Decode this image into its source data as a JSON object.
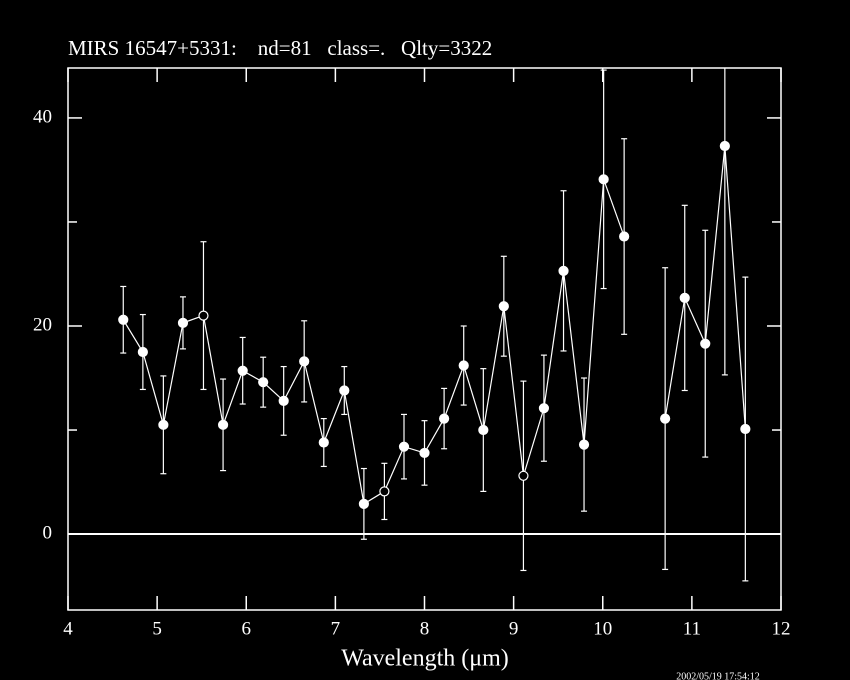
{
  "chart_data": {
    "type": "scatter",
    "title": "MIRS 16547+5331:    nd=81   class=.   Qlty=3322",
    "x_label": "Wavelength (μm)",
    "timestamp": "2002/05/19 17:54:12",
    "xlim": [
      4,
      12
    ],
    "xticks": [
      4,
      5,
      6,
      7,
      8,
      9,
      10,
      11,
      12
    ],
    "ylim": [
      -7.3,
      44.8
    ],
    "yticks": [
      0,
      20,
      40
    ],
    "yticks_minor": [
      10,
      30
    ],
    "hline": 0,
    "color": "#ffffff",
    "series": [
      {
        "x": [
          4.62,
          4.84,
          5.07,
          5.29,
          5.52,
          5.74,
          5.96,
          6.19,
          6.42,
          6.65,
          6.87,
          7.1,
          7.32,
          7.55,
          7.77,
          8.0,
          8.22,
          8.44,
          8.66,
          8.89,
          9.11,
          9.34,
          9.56,
          9.79,
          10.01,
          10.24,
          10.47,
          10.7,
          10.92,
          11.15,
          11.37,
          11.6
        ],
        "values": [
          20.6,
          17.5,
          10.5,
          20.3,
          21.0,
          10.5,
          15.7,
          14.6,
          12.8,
          16.6,
          8.8,
          13.8,
          2.9,
          4.1,
          8.4,
          7.8,
          11.1,
          16.2,
          10.0,
          21.9,
          5.6,
          12.1,
          25.3,
          8.6,
          34.1,
          28.6,
          null,
          11.1,
          22.7,
          18.3,
          37.3,
          10.1
        ],
        "errors": [
          3.2,
          3.6,
          4.7,
          2.5,
          7.1,
          4.4,
          3.2,
          2.4,
          3.3,
          3.9,
          2.3,
          2.3,
          3.4,
          2.7,
          3.1,
          3.1,
          2.9,
          3.8,
          5.9,
          4.8,
          9.1,
          5.1,
          7.7,
          6.4,
          10.5,
          9.4,
          null,
          14.5,
          8.9,
          10.9,
          22.0,
          14.6
        ],
        "markers": [
          "filled",
          "filled",
          "filled",
          "filled",
          "open",
          "filled",
          "filled",
          "filled",
          "filled",
          "filled",
          "filled",
          "filled",
          "filled",
          "open",
          "filled",
          "filled",
          "filled",
          "filled",
          "filled",
          "filled",
          "open",
          "filled",
          "filled",
          "filled",
          "filled",
          "filled",
          null,
          "filled",
          "filled",
          "filled",
          "filled",
          "filled"
        ]
      }
    ]
  }
}
